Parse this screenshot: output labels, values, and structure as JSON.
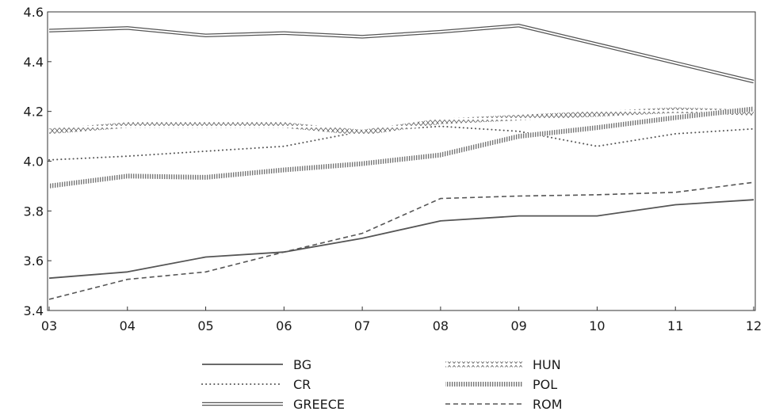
{
  "chart_data": {
    "type": "line",
    "title": "",
    "xlabel": "",
    "ylabel": "",
    "categories": [
      "03",
      "04",
      "05",
      "06",
      "07",
      "08",
      "09",
      "10",
      "11",
      "12"
    ],
    "ylim": [
      3.4,
      4.6
    ],
    "yticks": [
      "3.4",
      "3.6",
      "3.8",
      "4.0",
      "4.2",
      "4.4",
      "4.6"
    ],
    "grid": false,
    "legend_position": "bottom",
    "series": [
      {
        "name": "BG",
        "style": "solid",
        "color": "#555555",
        "values": [
          3.53,
          3.555,
          3.615,
          3.635,
          3.69,
          3.76,
          3.78,
          3.78,
          3.825,
          3.845
        ]
      },
      {
        "name": "CR",
        "style": "dotted",
        "color": "#555555",
        "values": [
          4.005,
          4.02,
          4.04,
          4.06,
          4.12,
          4.14,
          4.12,
          4.06,
          4.11,
          4.13
        ]
      },
      {
        "name": "GREECE",
        "style": "double",
        "color": "#555555",
        "values": [
          4.525,
          4.535,
          4.505,
          4.515,
          4.5,
          4.52,
          4.545,
          4.47,
          4.395,
          4.32
        ]
      },
      {
        "name": "HUN",
        "style": "diamond",
        "color": "#555555",
        "values": [
          4.12,
          4.145,
          4.145,
          4.145,
          4.115,
          4.16,
          4.175,
          4.19,
          4.205,
          4.195
        ]
      },
      {
        "name": "POL",
        "style": "hatched",
        "color": "#555555",
        "values": [
          3.9,
          3.94,
          3.935,
          3.965,
          3.99,
          4.025,
          4.1,
          4.135,
          4.175,
          4.21
        ]
      },
      {
        "name": "ROM",
        "style": "dashed",
        "color": "#555555",
        "values": [
          3.445,
          3.525,
          3.555,
          3.635,
          3.71,
          3.85,
          3.86,
          3.865,
          3.875,
          3.915
        ]
      }
    ]
  }
}
